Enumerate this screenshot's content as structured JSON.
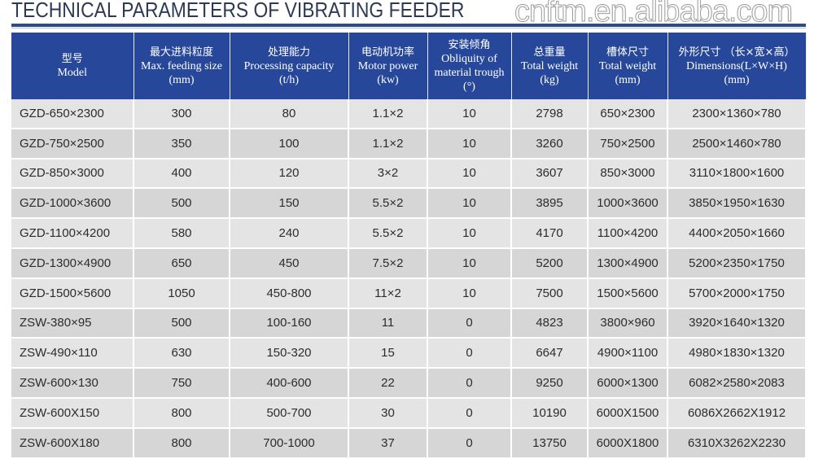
{
  "title": "TECHNICAL PARAMETERS OF VIBRATING FEEDER",
  "watermark": "cnftm.en.alibaba.com",
  "columns": [
    {
      "cn": "型号",
      "en": "Model",
      "unit": ""
    },
    {
      "cn": "最大进料粒度",
      "en": "Max. feeding size",
      "unit": "(mm)"
    },
    {
      "cn": "处理能力",
      "en": "Processing capacity",
      "unit": "(t/h)"
    },
    {
      "cn": "电动机功率",
      "en": "Motor power",
      "unit": "(kw)"
    },
    {
      "cn": "安装倾角",
      "en": "Obliquity of material trough",
      "unit": "(°)"
    },
    {
      "cn": "总重量",
      "en": "Total weight",
      "unit": "(kg)"
    },
    {
      "cn": "槽体尺寸",
      "en": "Total weight",
      "unit": "(mm)"
    },
    {
      "cn": "外形尺寸 （长×宽×高）",
      "en": "Dimensions(L×W×H)",
      "unit": "(mm)"
    }
  ],
  "rows": [
    [
      "GZD-650×2300",
      "300",
      "80",
      "1.1×2",
      "10",
      "2798",
      "650×2300",
      "2300×1360×780"
    ],
    [
      "GZD-750×2500",
      "350",
      "100",
      "1.1×2",
      "10",
      "3260",
      "750×2500",
      "2500×1460×780"
    ],
    [
      "GZD-850×3000",
      "400",
      "120",
      "3×2",
      "10",
      "3607",
      "850×3000",
      "3110×1800×1600"
    ],
    [
      "GZD-1000×3600",
      "500",
      "150",
      "5.5×2",
      "10",
      "3895",
      "1000×3600",
      "3850×1950×1630"
    ],
    [
      "GZD-1100×4200",
      "580",
      "240",
      "5.5×2",
      "10",
      "4170",
      "1100×4200",
      "4400×2050×1660"
    ],
    [
      "GZD-1300×4900",
      "650",
      "450",
      "7.5×2",
      "10",
      "5200",
      "1300×4900",
      "5200×2350×1750"
    ],
    [
      "GZD-1500×5600",
      "1050",
      "450-800",
      "11×2",
      "10",
      "7500",
      "1500×5600",
      "5700×2000×1750"
    ],
    [
      "ZSW-380×95",
      "500",
      "100-160",
      "11",
      "0",
      "4823",
      "3800×960",
      "3920×1640×1320"
    ],
    [
      "ZSW-490×110",
      "630",
      "150-320",
      "15",
      "0",
      "6647",
      "4900×1100",
      "4980×1830×1320"
    ],
    [
      "ZSW-600×130",
      "750",
      "400-600",
      "22",
      "0",
      "9250",
      "6000×1300",
      "6082×2580×2083"
    ],
    [
      "ZSW-600X150",
      "800",
      "500-700",
      "30",
      "0",
      "10190",
      "6000X1500",
      "6086X2662X1912"
    ],
    [
      "ZSW-600X180",
      "800",
      "700-1000",
      "37",
      "0",
      "13750",
      "6000X1800",
      "6310X3262X2230"
    ]
  ]
}
